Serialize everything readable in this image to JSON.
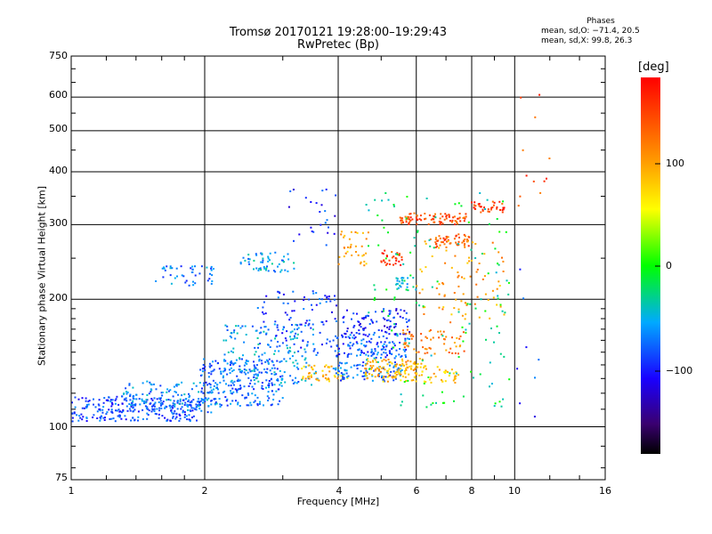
{
  "chart_data": {
    "type": "scatter",
    "title": "Tromsø 20170121 19:28:00–19:29:43",
    "subtitle": "RwPretec (Bp)",
    "xlabel": "Frequency [MHz]",
    "ylabel": "Stationary phase Virtual Height [km]",
    "x_scale": "log",
    "y_scale": "log",
    "xlim": [
      1,
      16
    ],
    "ylim": [
      75,
      750
    ],
    "x_ticks": [
      "1",
      "2",
      "4",
      "6",
      "8",
      "10",
      "16"
    ],
    "y_ticks": [
      "750",
      "600",
      "500",
      "400",
      "300",
      "200",
      "100",
      "75"
    ],
    "grid": true,
    "stats": {
      "heading": "Phases",
      "line_o": "mean, sd,O: −71.4, 20.5",
      "line_x": "mean, sd,X:  99.8, 26.3"
    },
    "colorbar": {
      "label": "[deg]",
      "range": [
        -180,
        180
      ],
      "ticks": [
        "100",
        "0",
        "−100"
      ],
      "colormap": "rainbow"
    },
    "clusters": [
      {
        "x": [
          1.0,
          1.95
        ],
        "y": [
          103,
          118
        ],
        "phase": -85,
        "n": 260
      },
      {
        "x": [
          1.3,
          2.2
        ],
        "y": [
          108,
          128
        ],
        "phase": -65,
        "n": 140
      },
      {
        "x": [
          1.95,
          3.0
        ],
        "y": [
          112,
          145
        ],
        "phase": -75,
        "n": 220
      },
      {
        "x": [
          2.2,
          3.6
        ],
        "y": [
          125,
          175
        ],
        "phase": -60,
        "n": 180
      },
      {
        "x": [
          2.6,
          4.0
        ],
        "y": [
          150,
          210
        ],
        "phase": -90,
        "n": 90
      },
      {
        "x": [
          1.55,
          2.1
        ],
        "y": [
          215,
          240
        ],
        "phase": -70,
        "n": 45
      },
      {
        "x": [
          2.4,
          3.2
        ],
        "y": [
          232,
          258
        ],
        "phase": -55,
        "n": 55
      },
      {
        "x": [
          3.1,
          4.0
        ],
        "y": [
          265,
          370
        ],
        "phase": -95,
        "n": 25
      },
      {
        "x": [
          3.3,
          4.2
        ],
        "y": [
          128,
          140
        ],
        "phase": 85,
        "n": 50
      },
      {
        "x": [
          3.9,
          5.6
        ],
        "y": [
          128,
          142
        ],
        "phase": -75,
        "n": 90
      },
      {
        "x": [
          3.9,
          5.8
        ],
        "y": [
          145,
          165
        ],
        "phase": -80,
        "n": 130
      },
      {
        "x": [
          4.1,
          5.8
        ],
        "y": [
          165,
          190
        ],
        "phase": -100,
        "n": 90
      },
      {
        "x": [
          4.6,
          6.2
        ],
        "y": [
          130,
          145
        ],
        "phase": 95,
        "n": 90
      },
      {
        "x": [
          5.0,
          7.5
        ],
        "y": [
          127,
          140
        ],
        "phase": 80,
        "n": 70
      },
      {
        "x": [
          5.6,
          7.7
        ],
        "y": [
          148,
          170
        ],
        "phase": 115,
        "n": 60
      },
      {
        "x": [
          4.0,
          4.7
        ],
        "y": [
          240,
          290
        ],
        "phase": 95,
        "n": 35
      },
      {
        "x": [
          5.0,
          5.6
        ],
        "y": [
          240,
          262
        ],
        "phase": 150,
        "n": 30
      },
      {
        "x": [
          5.5,
          7.8
        ],
        "y": [
          300,
          320
        ],
        "phase": 140,
        "n": 85
      },
      {
        "x": [
          6.6,
          7.9
        ],
        "y": [
          265,
          285
        ],
        "phase": 135,
        "n": 45
      },
      {
        "x": [
          8.0,
          9.5
        ],
        "y": [
          320,
          340
        ],
        "phase": 150,
        "n": 35
      },
      {
        "x": [
          5.4,
          6.0
        ],
        "y": [
          210,
          225
        ],
        "phase": -40,
        "n": 25
      },
      {
        "x": [
          6.0,
          9.5
        ],
        "y": [
          175,
          280
        ],
        "phase": 100,
        "n": 90
      },
      {
        "x": [
          4.6,
          9.8
        ],
        "y": [
          110,
          360
        ],
        "phase": -20,
        "n": 140
      },
      {
        "x": [
          10.0,
          12.2
        ],
        "y": [
          300,
          630
        ],
        "phase": 140,
        "n": 12
      },
      {
        "x": [
          10.0,
          12.0
        ],
        "y": [
          105,
          260
        ],
        "phase": -90,
        "n": 8
      }
    ]
  }
}
